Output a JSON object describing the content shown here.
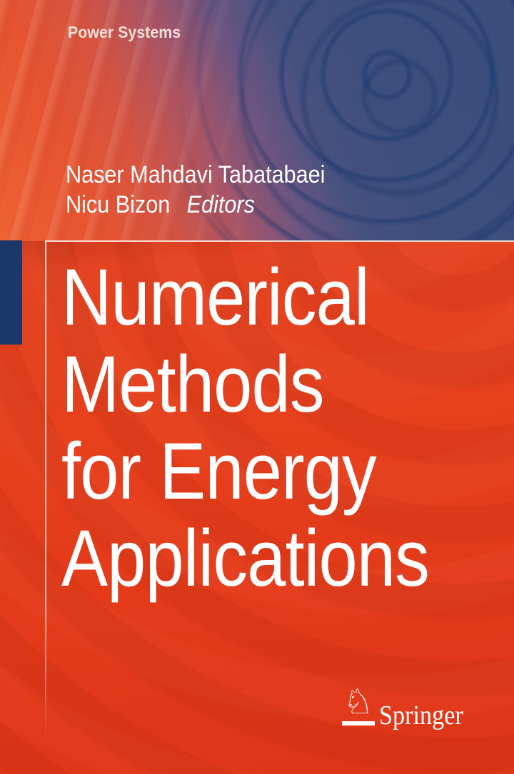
{
  "cover": {
    "series_title": "Power Systems",
    "authors": [
      "Naser Mahdavi Tabatabaei",
      "Nicu Bizon"
    ],
    "editors_label": "Editors",
    "title_lines": [
      "Numerical",
      "Methods",
      "for Energy",
      "Applications"
    ],
    "publisher": {
      "name": "Springer",
      "logo_icon": "chess-knight-icon",
      "logo_glyph": "♘"
    },
    "colors": {
      "cover_red": "#e63f1c",
      "cover_red_deep": "#dd3317",
      "cover_orange": "#ee6233",
      "banner_navy": "#3d4f7e",
      "ripple_navy_dark": "#1b3a6e",
      "accent_navy_block": "#1c386b",
      "frame_white": "#fff6ee",
      "title_text": "#ffffff",
      "series_text": "#f3ded6"
    }
  }
}
